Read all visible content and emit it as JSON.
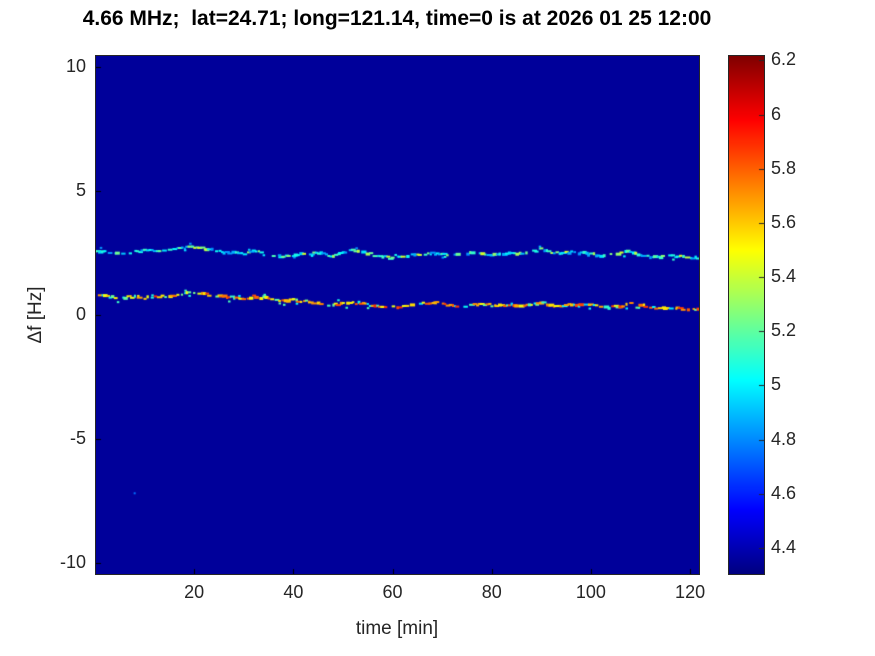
{
  "title": "4.66 MHz;  lat=24.71; long=121.14, time=0 is at 2026 01 25 12:00",
  "colors": {
    "figure_background": "#ffffff",
    "axis": "#262626",
    "title_color": "#000000"
  },
  "chart_data": {
    "type": "heatmap",
    "title": "4.66 MHz;  lat=24.71; long=121.14, time=0 is at 2026 01 25 12:00",
    "xlabel": "time [min]",
    "ylabel": "Δf [Hz]",
    "xlim": [
      0,
      122
    ],
    "ylim": [
      -10.5,
      10.5
    ],
    "xticks": [
      20,
      40,
      60,
      80,
      100,
      120
    ],
    "yticks": [
      -10,
      -5,
      0,
      5,
      10
    ],
    "grid": false,
    "background_value": 4.35,
    "colorbar": {
      "colormap": "jet",
      "range": [
        4.3,
        6.22
      ],
      "ticks": [
        4.4,
        4.6,
        4.8,
        5,
        5.2,
        5.4,
        5.6,
        5.8,
        6,
        6.2
      ],
      "position": "right"
    },
    "x": [
      0,
      2,
      4,
      6,
      8,
      10,
      12,
      14,
      16,
      18,
      20,
      22,
      24,
      26,
      28,
      30,
      32,
      34,
      36,
      38,
      40,
      42,
      44,
      46,
      48,
      50,
      52,
      54,
      56,
      58,
      60,
      62,
      64,
      66,
      68,
      70,
      72,
      74,
      76,
      78,
      80,
      82,
      84,
      86,
      88,
      90,
      92,
      94,
      96,
      98,
      100,
      102,
      104,
      106,
      108,
      110,
      112,
      114,
      116,
      118,
      120,
      122
    ],
    "series": [
      {
        "name": "upper-doppler-trace",
        "description": "speckled cyan-green dashed trace near Δf ≈ 2.5 Hz",
        "y": [
          2.55,
          2.55,
          2.5,
          2.5,
          2.55,
          2.6,
          2.6,
          2.65,
          2.7,
          2.7,
          2.75,
          2.7,
          2.6,
          2.55,
          2.5,
          2.45,
          2.6,
          2.55,
          2.4,
          2.35,
          2.4,
          2.45,
          2.5,
          2.45,
          2.4,
          2.5,
          2.6,
          2.5,
          2.45,
          2.35,
          2.3,
          2.35,
          2.4,
          2.45,
          2.5,
          2.45,
          2.4,
          2.45,
          2.5,
          2.45,
          2.4,
          2.45,
          2.5,
          2.45,
          2.55,
          2.65,
          2.55,
          2.5,
          2.55,
          2.5,
          2.45,
          2.4,
          2.45,
          2.5,
          2.55,
          2.45,
          2.35,
          2.35,
          2.4,
          2.35,
          2.3,
          2.3
        ],
        "v_components": [
          {
            "p": 0.75,
            "range": [
              4.8,
              5.15
            ]
          },
          {
            "p": 0.25,
            "range": [
              5.15,
              5.45
            ]
          }
        ],
        "style": "speckled-dash"
      },
      {
        "name": "lower-doppler-trace",
        "description": "speckled orange-red dashed trace near Δf ≈ 0.5 Hz with cyan specks",
        "y": [
          0.8,
          0.75,
          0.7,
          0.7,
          0.75,
          0.7,
          0.7,
          0.75,
          0.8,
          0.85,
          0.9,
          0.85,
          0.8,
          0.75,
          0.7,
          0.65,
          0.75,
          0.7,
          0.6,
          0.55,
          0.6,
          0.55,
          0.5,
          0.45,
          0.4,
          0.45,
          0.5,
          0.45,
          0.4,
          0.35,
          0.3,
          0.35,
          0.4,
          0.45,
          0.5,
          0.45,
          0.4,
          0.35,
          0.4,
          0.45,
          0.4,
          0.35,
          0.4,
          0.35,
          0.45,
          0.5,
          0.4,
          0.35,
          0.4,
          0.45,
          0.4,
          0.35,
          0.3,
          0.35,
          0.5,
          0.4,
          0.3,
          0.25,
          0.3,
          0.25,
          0.2,
          0.2
        ],
        "v_components": [
          {
            "p": 0.3,
            "range": [
              4.95,
              5.25
            ]
          },
          {
            "p": 0.7,
            "range": [
              5.45,
              5.9
            ]
          }
        ],
        "style": "speckled-dash"
      }
    ],
    "specks": [
      {
        "x": 8,
        "y": -7.2,
        "v": 4.75
      }
    ]
  }
}
